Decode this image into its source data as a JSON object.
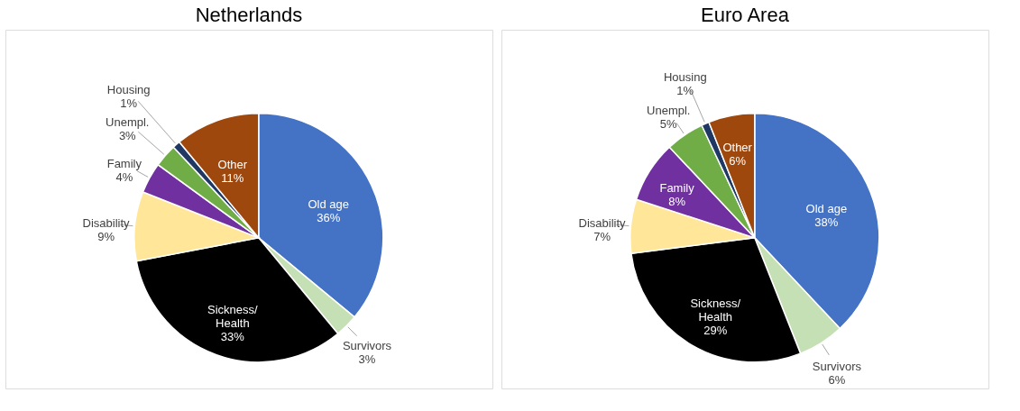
{
  "chart_data": [
    {
      "type": "pie",
      "title": "Netherlands",
      "categories": [
        "Old age",
        "Survivors",
        "Sickness/Health",
        "Disability",
        "Family",
        "Unempl.",
        "Housing",
        "Other"
      ],
      "values": [
        36,
        3,
        33,
        9,
        4,
        3,
        1,
        11
      ],
      "value_labels": [
        "36%",
        "3%",
        "33%",
        "9%",
        "4%",
        "3%",
        "1%",
        "11%"
      ],
      "colors": [
        "#4472c4",
        "#c5e0b4",
        "#000000",
        "#ffe699",
        "#7030a0",
        "#70ad47",
        "#1f3864",
        "#9e480e"
      ]
    },
    {
      "type": "pie",
      "title": "Euro Area",
      "categories": [
        "Old age",
        "Survivors",
        "Sickness/Health",
        "Disability",
        "Family",
        "Unempl.",
        "Housing",
        "Other"
      ],
      "values": [
        38,
        6,
        29,
        7,
        8,
        5,
        1,
        6
      ],
      "value_labels": [
        "38%",
        "6%",
        "29%",
        "7%",
        "8%",
        "5%",
        "1%",
        "6%"
      ],
      "colors": [
        "#4472c4",
        "#c5e0b4",
        "#000000",
        "#ffe699",
        "#7030a0",
        "#70ad47",
        "#1f3864",
        "#9e480e"
      ]
    }
  ]
}
